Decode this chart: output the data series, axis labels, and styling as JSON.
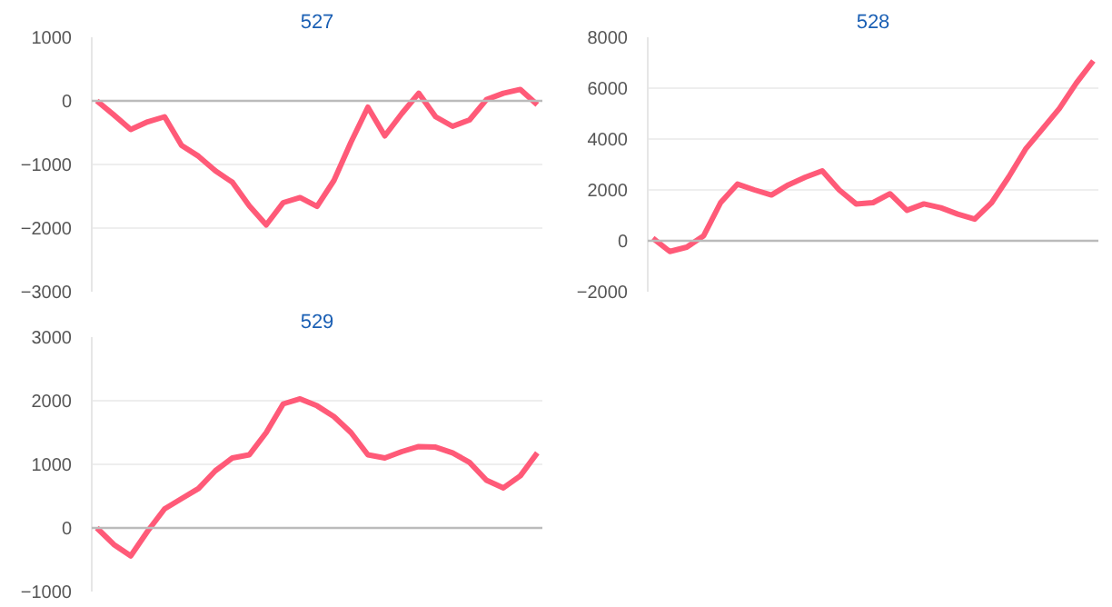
{
  "chart_data": [
    {
      "type": "line",
      "title": "527",
      "categories": [
        null,
        null,
        null,
        null,
        null,
        null,
        null,
        null,
        null,
        null,
        null,
        null,
        null,
        null,
        null,
        null,
        null,
        null,
        null,
        null,
        null,
        null,
        null,
        null,
        null,
        null,
        null
      ],
      "series": [
        {
          "color": "#ff5a78",
          "values": [
            0,
            -220,
            -450,
            -330,
            -250,
            -700,
            -870,
            -1100,
            -1280,
            -1650,
            -1950,
            -1600,
            -1520,
            -1660,
            -1250,
            -650,
            -100,
            -550,
            -200,
            120,
            -250,
            -400,
            -300,
            20,
            120,
            180,
            -60
          ]
        }
      ],
      "ylim": [
        -3000,
        1000
      ],
      "yticks": [
        -3000,
        -2000,
        -1000,
        0,
        1000
      ],
      "grid": "y",
      "marker": "none",
      "line_style": "solid",
      "ref_lines": [
        {
          "axis": "y",
          "value": 0,
          "color": "#bbbbbb"
        }
      ]
    },
    {
      "type": "line",
      "title": "528",
      "categories": [
        null,
        null,
        null,
        null,
        null,
        null,
        null,
        null,
        null,
        null,
        null,
        null,
        null,
        null,
        null,
        null,
        null,
        null,
        null,
        null,
        null,
        null,
        null,
        null,
        null,
        null,
        null
      ],
      "series": [
        {
          "color": "#ff5a78",
          "values": [
            100,
            -420,
            -250,
            200,
            1500,
            2230,
            2000,
            1800,
            2200,
            2500,
            2750,
            2000,
            1450,
            1500,
            1850,
            1200,
            1450,
            1300,
            1050,
            850,
            1500,
            2500,
            3600,
            4400,
            5200,
            6200,
            7070
          ]
        }
      ],
      "ylim": [
        -2000,
        8000
      ],
      "yticks": [
        -2000,
        0,
        2000,
        4000,
        6000,
        8000
      ],
      "grid": "y",
      "marker": "none",
      "line_style": "solid",
      "ref_lines": [
        {
          "axis": "y",
          "value": 0,
          "color": "#bbbbbb"
        }
      ]
    },
    {
      "type": "line",
      "title": "529",
      "categories": [
        null,
        null,
        null,
        null,
        null,
        null,
        null,
        null,
        null,
        null,
        null,
        null,
        null,
        null,
        null,
        null,
        null,
        null,
        null,
        null,
        null,
        null,
        null,
        null,
        null,
        null,
        null
      ],
      "series": [
        {
          "color": "#ff5a78",
          "values": [
            0,
            -260,
            -440,
            -50,
            300,
            460,
            620,
            900,
            1100,
            1150,
            1500,
            1950,
            2030,
            1920,
            1750,
            1500,
            1150,
            1100,
            1200,
            1280,
            1270,
            1180,
            1030,
            750,
            630,
            820,
            1180
          ]
        }
      ],
      "ylim": [
        -1000,
        3000
      ],
      "yticks": [
        -1000,
        0,
        1000,
        2000,
        3000
      ],
      "grid": "y",
      "marker": "none",
      "line_style": "solid",
      "ref_lines": [
        {
          "axis": "y",
          "value": 0,
          "color": "#bbbbbb"
        }
      ]
    }
  ]
}
